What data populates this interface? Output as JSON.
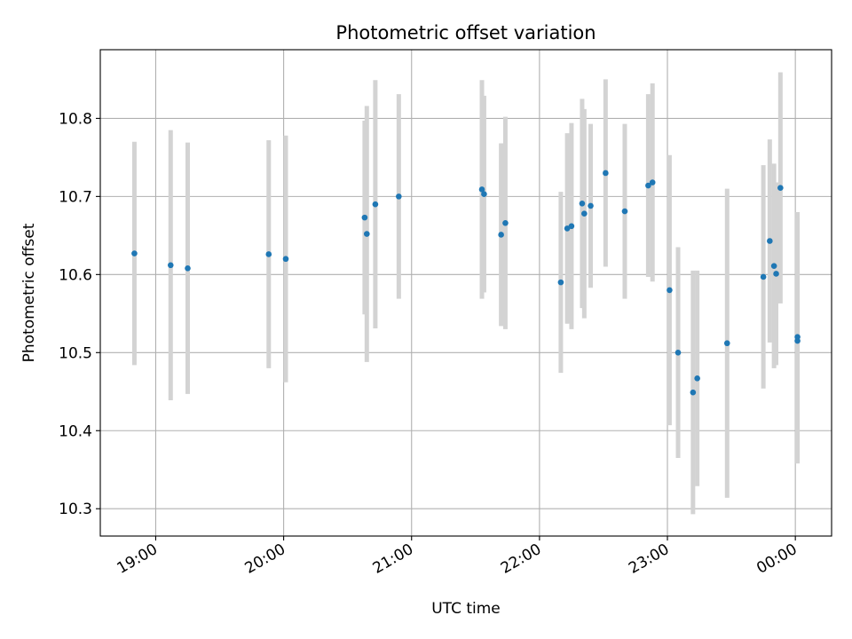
{
  "chart_data": {
    "type": "scatter",
    "title": "Photometric offset variation",
    "xlabel": "UTC time",
    "ylabel": "Photometric offset",
    "x_axis_kind": "time",
    "xlim": [
      "18:34",
      "00:17"
    ],
    "ylim": [
      10.265,
      10.888
    ],
    "x_ticks": [
      "19:00",
      "20:00",
      "21:00",
      "22:00",
      "23:00",
      "00:00"
    ],
    "y_ticks": [
      10.3,
      10.4,
      10.5,
      10.6,
      10.7,
      10.8
    ],
    "grid": true,
    "colors": {
      "point": "#1f77b4",
      "errorbar": "#d3d3d3",
      "grid": "#b0b0b0"
    },
    "points": [
      {
        "x": "18:50",
        "y": 10.627,
        "err": 0.143
      },
      {
        "x": "19:07",
        "y": 10.612,
        "err": 0.173
      },
      {
        "x": "19:15",
        "y": 10.608,
        "err": 0.161
      },
      {
        "x": "19:53",
        "y": 10.626,
        "err": 0.146
      },
      {
        "x": "20:01",
        "y": 10.62,
        "err": 0.158
      },
      {
        "x": "20:38",
        "y": 10.673,
        "err": 0.124
      },
      {
        "x": "20:39",
        "y": 10.652,
        "err": 0.164
      },
      {
        "x": "20:43",
        "y": 10.69,
        "err": 0.159
      },
      {
        "x": "20:54",
        "y": 10.7,
        "err": 0.131
      },
      {
        "x": "21:33",
        "y": 10.709,
        "err": 0.14
      },
      {
        "x": "21:34",
        "y": 10.703,
        "err": 0.126
      },
      {
        "x": "21:42",
        "y": 10.651,
        "err": 0.117
      },
      {
        "x": "21:44",
        "y": 10.666,
        "err": 0.136
      },
      {
        "x": "22:10",
        "y": 10.59,
        "err": 0.116
      },
      {
        "x": "22:13",
        "y": 10.659,
        "err": 0.122
      },
      {
        "x": "22:15",
        "y": 10.662,
        "err": 0.132
      },
      {
        "x": "22:20",
        "y": 10.691,
        "err": 0.134
      },
      {
        "x": "22:21",
        "y": 10.678,
        "err": 0.134
      },
      {
        "x": "22:24",
        "y": 10.688,
        "err": 0.105
      },
      {
        "x": "22:31",
        "y": 10.73,
        "err": 0.12
      },
      {
        "x": "22:40",
        "y": 10.681,
        "err": 0.112
      },
      {
        "x": "22:51",
        "y": 10.714,
        "err": 0.117
      },
      {
        "x": "22:53",
        "y": 10.718,
        "err": 0.127
      },
      {
        "x": "23:01",
        "y": 10.58,
        "err": 0.173
      },
      {
        "x": "23:05",
        "y": 10.5,
        "err": 0.135
      },
      {
        "x": "23:12",
        "y": 10.449,
        "err": 0.156
      },
      {
        "x": "23:14",
        "y": 10.467,
        "err": 0.138
      },
      {
        "x": "23:28",
        "y": 10.512,
        "err": 0.198
      },
      {
        "x": "23:45",
        "y": 10.597,
        "err": 0.143
      },
      {
        "x": "23:48",
        "y": 10.643,
        "err": 0.13
      },
      {
        "x": "23:50",
        "y": 10.611,
        "err": 0.131
      },
      {
        "x": "23:51",
        "y": 10.601,
        "err": 0.117
      },
      {
        "x": "23:53",
        "y": 10.711,
        "err": 0.148
      },
      {
        "x": "00:01",
        "y": 10.515,
        "err": 0.157
      },
      {
        "x": "00:01",
        "y": 10.52,
        "err": 0.16
      }
    ]
  }
}
